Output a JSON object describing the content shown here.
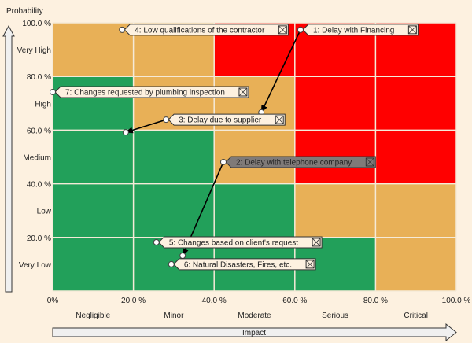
{
  "chart_data": {
    "type": "heatmap",
    "subtype": "risk-matrix",
    "xlabel": "Impact",
    "ylabel": "Probability",
    "xlim": [
      0,
      100
    ],
    "ylim": [
      0,
      100
    ],
    "x_ticks": [
      "0%",
      "20.0 %",
      "40.0 %",
      "60.0 %",
      "80.0 %",
      "100.0 %"
    ],
    "y_ticks": [
      "20.0 %",
      "40.0 %",
      "60.0 %",
      "80.0 %",
      "100.0 %"
    ],
    "x_categories": [
      "Negligible",
      "Minor",
      "Moderate",
      "Serious",
      "Critical"
    ],
    "y_categories": [
      "Very Low",
      "Low",
      "Medium",
      "High",
      "Very High"
    ],
    "colors": {
      "green": "#22a05a",
      "orange": "#e8b057",
      "red": "#ff0000",
      "background": "#fdf1e0",
      "highlight_label": "#7f7a78"
    },
    "grid": [
      [
        "green",
        "green",
        "green",
        "green",
        "orange"
      ],
      [
        "green",
        "green",
        "green",
        "orange",
        "orange"
      ],
      [
        "green",
        "green",
        "orange",
        "red",
        "red"
      ],
      [
        "green",
        "orange",
        "orange",
        "red",
        "red"
      ],
      [
        "orange",
        "orange",
        "red",
        "red",
        "red"
      ]
    ],
    "risks": [
      {
        "label": "1: Delay with Financing",
        "impact": 61.4,
        "probability": 97.4,
        "target": {
          "impact": 51.7,
          "probability": 66.6
        },
        "highlighted": false
      },
      {
        "label": "2: Delay with telephone company",
        "impact": 42.3,
        "probability": 48.1,
        "target": {
          "impact": 32.2,
          "probability": 13.2
        },
        "highlighted": true
      },
      {
        "label": "3: Delay due to supplier",
        "impact": 28.1,
        "probability": 63.9,
        "target": {
          "impact": 18.1,
          "probability": 59.2
        },
        "highlighted": false
      },
      {
        "label": "4: Low qualifications of the contractor",
        "impact": 17.2,
        "probability": 97.4,
        "target": null,
        "highlighted": false
      },
      {
        "label": "5: Changes based on client's request",
        "impact": 25.7,
        "probability": 18.2,
        "target": null,
        "highlighted": false
      },
      {
        "label": "6: Natural Disasters, Fires, etc.",
        "impact": 29.4,
        "probability": 10.0,
        "target": null,
        "highlighted": false
      },
      {
        "label": "7: Changes requested by plumbing inspection",
        "impact": 0,
        "probability": 74.2,
        "target": null,
        "highlighted": false
      }
    ]
  }
}
